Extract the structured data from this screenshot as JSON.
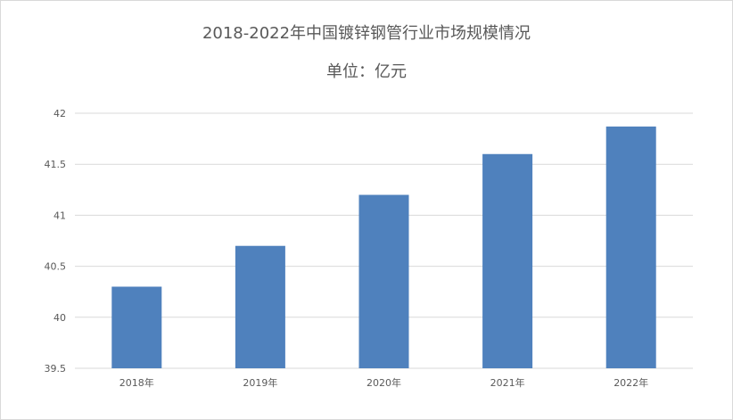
{
  "chart_data": {
    "type": "bar",
    "title": "2018-2022年中国镀锌钢管行业市场规模情况",
    "subtitle": "单位：亿元",
    "categories": [
      "2018年",
      "2019年",
      "2020年",
      "2021年",
      "2022年"
    ],
    "values": [
      40.3,
      40.7,
      41.2,
      41.6,
      41.87
    ],
    "ylim": [
      39.5,
      42
    ],
    "yticks": [
      39.5,
      40,
      40.5,
      41,
      41.5,
      42
    ],
    "grid": true,
    "legend": "none",
    "bar_color": "#4f81bd",
    "grid_color": "#d9d9d9"
  }
}
